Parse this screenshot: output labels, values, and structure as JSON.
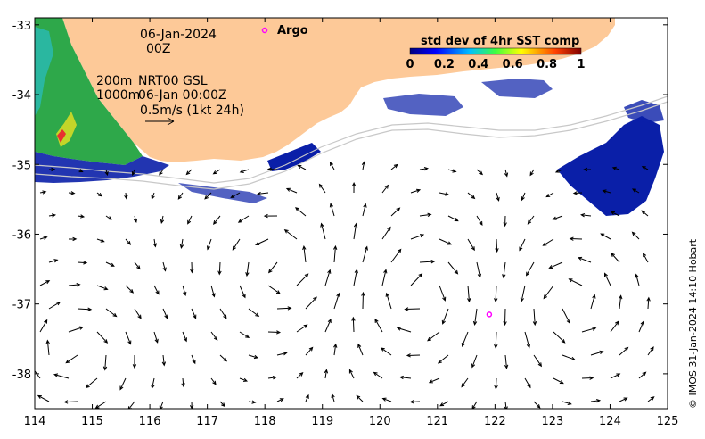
{
  "map": {
    "date": "06-Jan-2024",
    "hour": "00Z",
    "depth_shallow": "200m",
    "depth_deep": "1000m",
    "product": "NRT00 GSL",
    "product_time": "06-Jan 00:00Z",
    "scale_label": "0.5m/s (1kt 24h)",
    "argo_label": "Argo",
    "colorbar_title": "std dev of 4hr SST comp",
    "colorbar_ticks": [
      "0",
      "0.2",
      "0.4",
      "0.6",
      "0.8",
      "1"
    ],
    "credit": "© IMOS 31-Jan-2024 14:10 Hobart",
    "lon_ticks": [
      "114",
      "115",
      "116",
      "117",
      "118",
      "119",
      "120",
      "121",
      "122",
      "123",
      "124",
      "125"
    ],
    "lat_ticks": [
      "-33",
      "-34",
      "-35",
      "-36",
      "-37",
      "-38"
    ],
    "colors": {
      "land": "#fdc998",
      "argo_marker": "#ff00ff",
      "vector": "#000000",
      "sst_low": "#0a1fa8",
      "sst_high": "#ff0000"
    },
    "argo_float": {
      "lon": 121.9,
      "lat": -37.15
    }
  }
}
